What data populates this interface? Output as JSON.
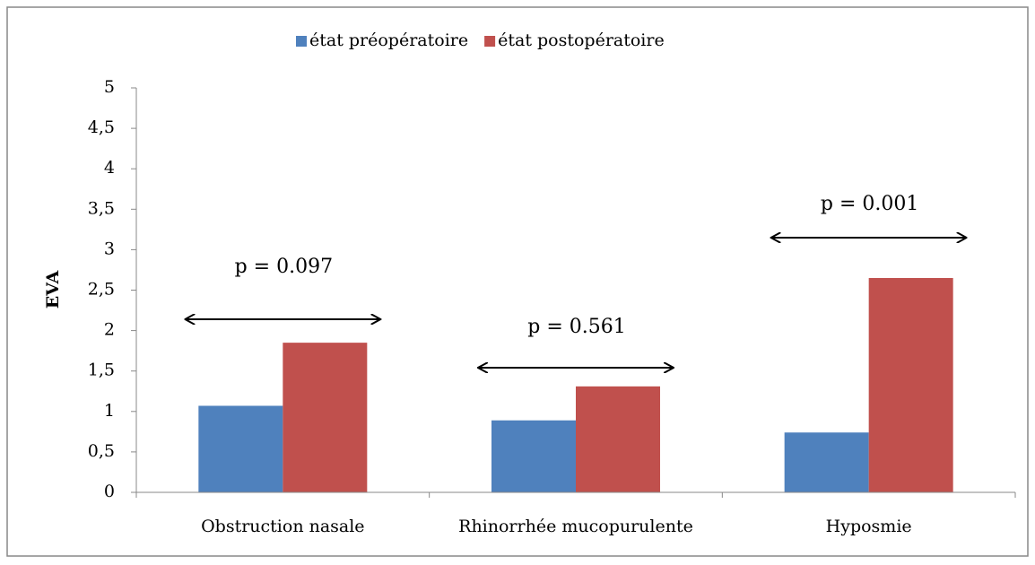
{
  "chart_data": {
    "type": "bar",
    "y_label": "EVA",
    "categories": [
      "Obstruction nasale",
      "Rhinorrhée mucopurulente",
      "Hyposmie"
    ],
    "series": [
      {
        "name": "état préopératoire",
        "color": "#4f81bd",
        "values": [
          1.07,
          0.89,
          0.74
        ]
      },
      {
        "name": "état postopératoire",
        "color": "#c0504d",
        "values": [
          1.85,
          1.31,
          2.65
        ]
      }
    ],
    "ylim": [
      0,
      5
    ],
    "yticks": [
      0,
      {
        "value": 0.5,
        "label": "0,5"
      },
      1,
      {
        "value": 1.5,
        "label": "1,5"
      },
      2,
      {
        "value": 2.5,
        "label": "2,5"
      },
      3,
      {
        "value": 3.5,
        "label": "3,5"
      },
      4,
      {
        "value": 4.5,
        "label": "4,5"
      },
      5
    ],
    "annotations": [
      "p = 0.097",
      "p = 0.561",
      "p = 0.001"
    ],
    "legend": "top"
  }
}
